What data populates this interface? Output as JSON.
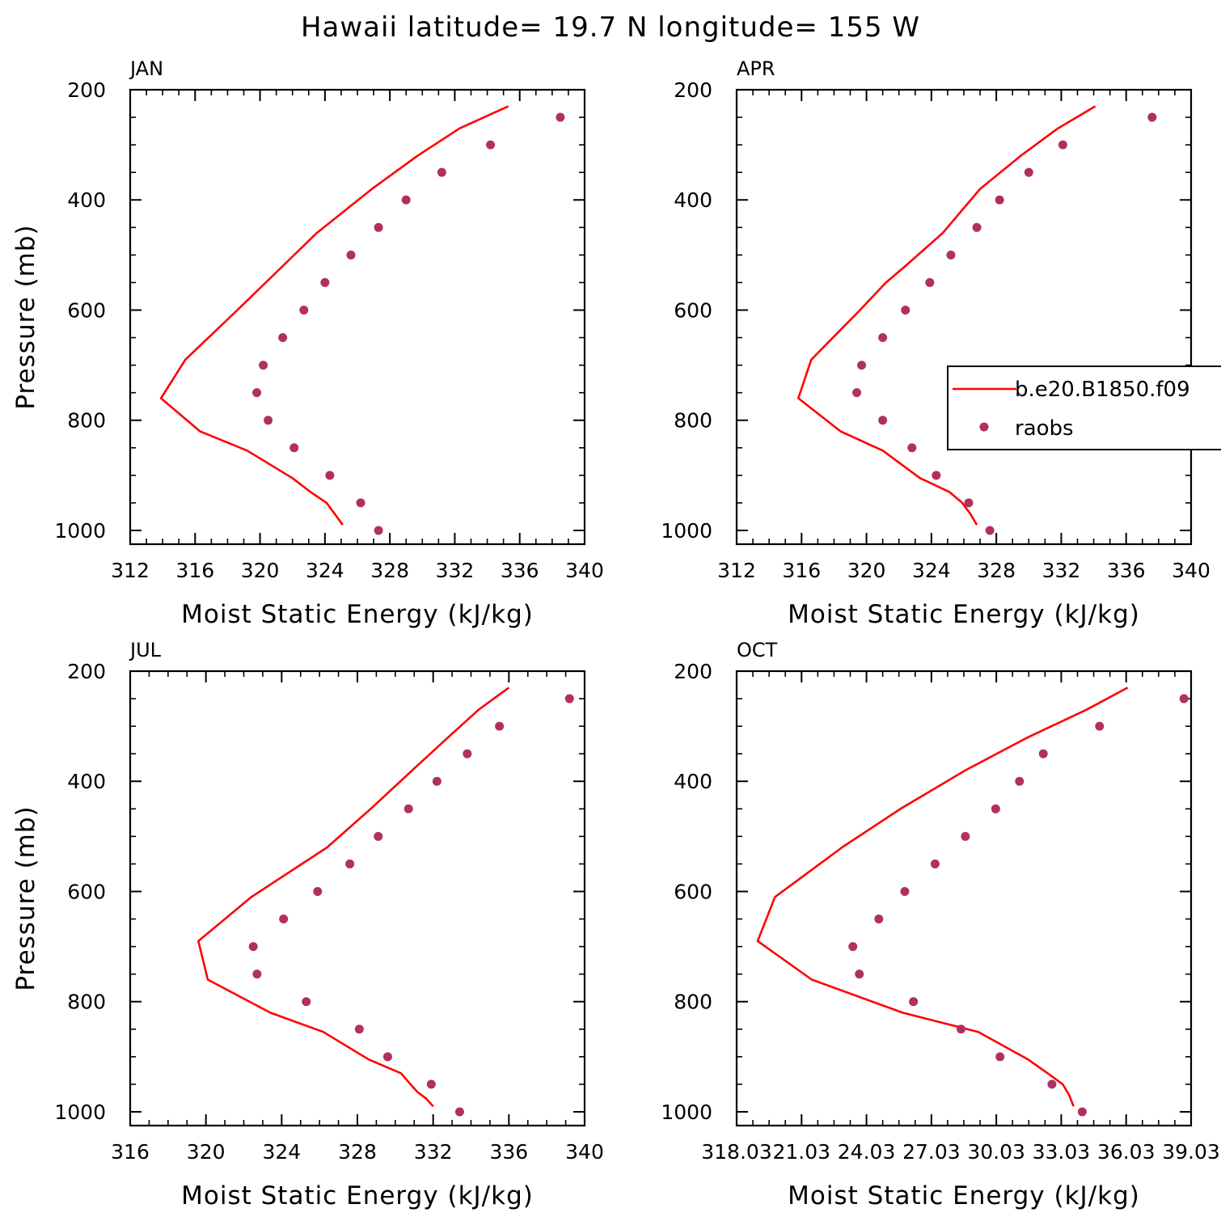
{
  "title": "Hawaii  latitude= 19.7 N longitude= 155 W",
  "colors": {
    "model_line": "#ff0000",
    "obs_marker": "#b03060",
    "axis": "#000000"
  },
  "legend": {
    "placement": "middle-right of APR panel",
    "entries": [
      {
        "label": "b.e20.B1850.f09",
        "style": "line",
        "color": "#ff0000"
      },
      {
        "label": "raobs",
        "style": "marker",
        "color": "#b03060"
      }
    ]
  },
  "chart_data": [
    {
      "type": "line",
      "panel": "JAN",
      "xlabel": "Moist Static Energy (kJ/kg)",
      "ylabel": "Pressure (mb)",
      "xlim": [
        312,
        340
      ],
      "ylim": [
        1025,
        200
      ],
      "xticks": [
        "312",
        "316",
        "320",
        "324",
        "328",
        "332",
        "336",
        "340"
      ],
      "yticks": [
        "200",
        "400",
        "600",
        "800",
        "1000"
      ],
      "series": [
        {
          "name": "b.e20.B1850.f09",
          "style": "line",
          "x": [
            335.3,
            332.3,
            329.7,
            326.9,
            323.5,
            321.4,
            318.6,
            315.4,
            313.9,
            316.3,
            319.2,
            322.0,
            323.1,
            324.1,
            324.6,
            325.1
          ],
          "y": [
            230,
            270,
            320,
            380,
            460,
            520,
            600,
            690,
            760,
            820,
            855,
            905,
            930,
            950,
            970,
            990
          ]
        },
        {
          "name": "raobs",
          "style": "marker",
          "x": [
            338.5,
            334.2,
            331.2,
            329.0,
            327.3,
            325.6,
            324.0,
            322.7,
            321.4,
            320.2,
            319.8,
            320.5,
            322.1,
            324.3,
            326.2,
            327.3
          ],
          "y": [
            250,
            300,
            350,
            400,
            450,
            500,
            550,
            600,
            650,
            700,
            750,
            800,
            850,
            900,
            950,
            1000
          ]
        }
      ]
    },
    {
      "type": "line",
      "panel": "APR",
      "xlabel": "Moist Static Energy (kJ/kg)",
      "ylabel": "",
      "xlim": [
        312,
        340
      ],
      "ylim": [
        1025,
        200
      ],
      "xticks": [
        "312",
        "316",
        "320",
        "324",
        "328",
        "332",
        "336",
        "340"
      ],
      "yticks": [
        "200",
        "400",
        "600",
        "800",
        "1000"
      ],
      "series": [
        {
          "name": "b.e20.B1850.f09",
          "style": "line",
          "x": [
            334.1,
            331.8,
            329.5,
            327.0,
            324.7,
            322.4,
            321.2,
            319.6,
            316.6,
            315.8,
            318.4,
            321.0,
            323.3,
            325.1,
            325.9,
            326.4,
            326.8
          ],
          "y": [
            230,
            270,
            320,
            380,
            460,
            520,
            550,
            600,
            690,
            760,
            820,
            855,
            905,
            930,
            950,
            970,
            990
          ]
        },
        {
          "name": "raobs",
          "style": "marker",
          "x": [
            337.6,
            332.1,
            330.0,
            328.2,
            326.8,
            325.2,
            323.9,
            322.4,
            321.0,
            319.7,
            319.4,
            321.0,
            322.8,
            324.3,
            326.3,
            327.6
          ],
          "y": [
            250,
            300,
            350,
            400,
            450,
            500,
            550,
            600,
            650,
            700,
            750,
            800,
            850,
            900,
            950,
            1000
          ]
        }
      ]
    },
    {
      "type": "line",
      "panel": "JUL",
      "xlabel": "Moist Static Energy (kJ/kg)",
      "ylabel": "Pressure (mb)",
      "xlim": [
        316,
        340
      ],
      "ylim": [
        1025,
        200
      ],
      "xticks": [
        "316",
        "320",
        "324",
        "328",
        "332",
        "336",
        "340"
      ],
      "yticks": [
        "200",
        "400",
        "600",
        "800",
        "1000"
      ],
      "series": [
        {
          "name": "b.e20.B1850.f09",
          "style": "line",
          "x": [
            336.0,
            334.4,
            332.8,
            330.9,
            328.7,
            326.4,
            322.4,
            319.6,
            320.1,
            323.4,
            326.2,
            328.6,
            330.3,
            330.8,
            331.2,
            331.6,
            332.0
          ],
          "y": [
            230,
            270,
            320,
            380,
            450,
            520,
            610,
            690,
            760,
            820,
            855,
            905,
            930,
            950,
            965,
            975,
            990
          ]
        },
        {
          "name": "raobs",
          "style": "marker",
          "x": [
            339.2,
            335.5,
            333.8,
            332.2,
            330.7,
            329.1,
            327.6,
            325.9,
            324.1,
            322.5,
            322.7,
            325.3,
            328.1,
            329.6,
            331.9,
            333.4
          ],
          "y": [
            250,
            300,
            350,
            400,
            450,
            500,
            550,
            600,
            650,
            700,
            750,
            800,
            850,
            900,
            950,
            1000
          ]
        }
      ]
    },
    {
      "type": "line",
      "panel": "OCT",
      "xlabel": "Moist Static Energy (kJ/kg)",
      "ylabel": "",
      "xlim": [
        318.03,
        339.03
      ],
      "ylim": [
        1025,
        200
      ],
      "xticks": [
        "318.03",
        "21.03",
        "24.03",
        "27.03",
        "30.03",
        "33.03",
        "36.03",
        "39.03"
      ],
      "yticks": [
        "200",
        "400",
        "600",
        "800",
        "1000"
      ],
      "series": [
        {
          "name": "b.e20.B1850.f09",
          "style": "line",
          "x": [
            336.1,
            334.2,
            331.5,
            328.6,
            325.6,
            322.9,
            319.8,
            319.0,
            321.5,
            325.7,
            329.2,
            331.5,
            332.4,
            333.1,
            333.4,
            333.6
          ],
          "y": [
            230,
            270,
            320,
            380,
            450,
            520,
            610,
            690,
            760,
            820,
            855,
            905,
            930,
            950,
            970,
            990
          ]
        },
        {
          "name": "raobs",
          "style": "marker",
          "x": [
            338.7,
            334.8,
            332.2,
            331.1,
            330.0,
            328.6,
            327.2,
            325.8,
            324.6,
            323.4,
            323.7,
            326.2,
            328.4,
            330.2,
            332.6,
            334.0
          ],
          "y": [
            250,
            300,
            350,
            400,
            450,
            500,
            550,
            600,
            650,
            700,
            750,
            800,
            850,
            900,
            950,
            1000
          ]
        }
      ]
    }
  ]
}
